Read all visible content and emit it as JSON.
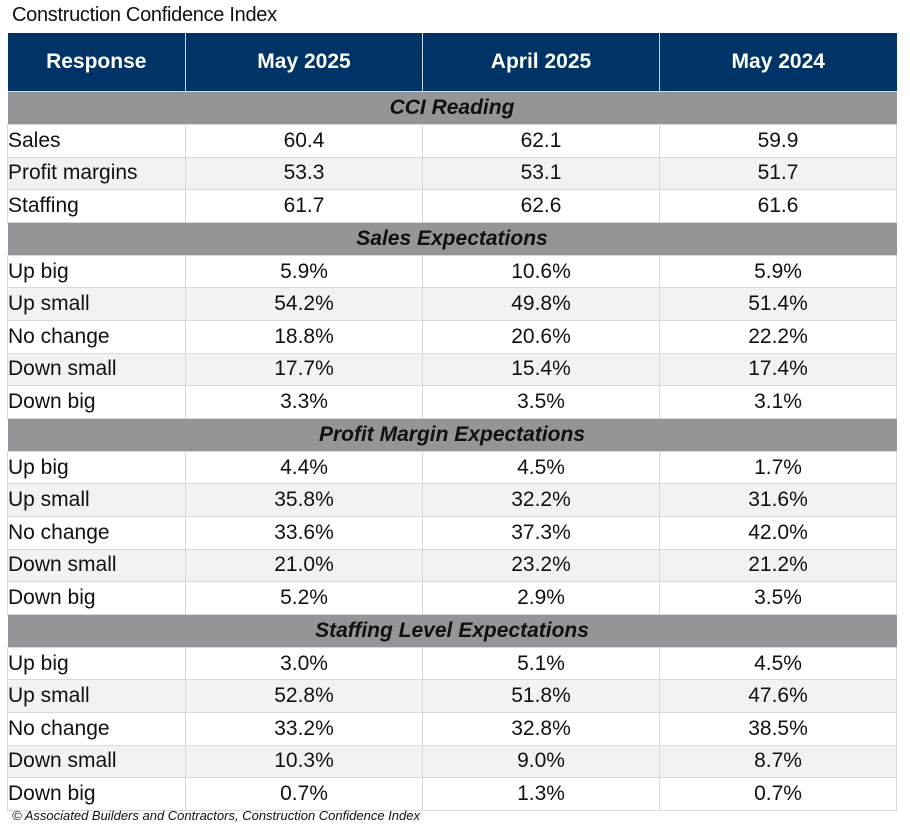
{
  "chart_data": {
    "type": "table",
    "title": "Construction Confidence Index",
    "columns": [
      "Response",
      "May 2025",
      "April 2025",
      "May 2024"
    ],
    "sections": [
      {
        "name": "CCI Reading",
        "rows": [
          {
            "label": "Sales",
            "values": [
              "60.4",
              "62.1",
              "59.9"
            ]
          },
          {
            "label": "Profit margins",
            "values": [
              "53.3",
              "53.1",
              "51.7"
            ]
          },
          {
            "label": "Staffing",
            "values": [
              "61.7",
              "62.6",
              "61.6"
            ]
          }
        ]
      },
      {
        "name": "Sales Expectations",
        "rows": [
          {
            "label": "Up big",
            "values": [
              "5.9%",
              "10.6%",
              "5.9%"
            ]
          },
          {
            "label": "Up small",
            "values": [
              "54.2%",
              "49.8%",
              "51.4%"
            ]
          },
          {
            "label": "No change",
            "values": [
              "18.8%",
              "20.6%",
              "22.2%"
            ]
          },
          {
            "label": "Down small",
            "values": [
              "17.7%",
              "15.4%",
              "17.4%"
            ]
          },
          {
            "label": "Down big",
            "values": [
              "3.3%",
              "3.5%",
              "3.1%"
            ]
          }
        ]
      },
      {
        "name": "Profit Margin Expectations",
        "rows": [
          {
            "label": "Up big",
            "values": [
              "4.4%",
              "4.5%",
              "1.7%"
            ]
          },
          {
            "label": "Up small",
            "values": [
              "35.8%",
              "32.2%",
              "31.6%"
            ]
          },
          {
            "label": "No change",
            "values": [
              "33.6%",
              "37.3%",
              "42.0%"
            ]
          },
          {
            "label": "Down small",
            "values": [
              "21.0%",
              "23.2%",
              "21.2%"
            ]
          },
          {
            "label": "Down big",
            "values": [
              "5.2%",
              "2.9%",
              "3.5%"
            ]
          }
        ]
      },
      {
        "name": "Staffing Level Expectations",
        "rows": [
          {
            "label": "Up big",
            "values": [
              "3.0%",
              "5.1%",
              "4.5%"
            ]
          },
          {
            "label": "Up small",
            "values": [
              "52.8%",
              "51.8%",
              "47.6%"
            ]
          },
          {
            "label": "No change",
            "values": [
              "33.2%",
              "32.8%",
              "38.5%"
            ]
          },
          {
            "label": "Down small",
            "values": [
              "10.3%",
              "9.0%",
              "8.7%"
            ]
          },
          {
            "label": "Down big",
            "values": [
              "0.7%",
              "1.3%",
              "0.7%"
            ]
          }
        ]
      }
    ],
    "footnote": "© Associated Builders and Contractors, Construction Confidence Index",
    "colors": {
      "header": "#003366",
      "section": "#939598",
      "alt_row": "#f2f2f2"
    }
  }
}
